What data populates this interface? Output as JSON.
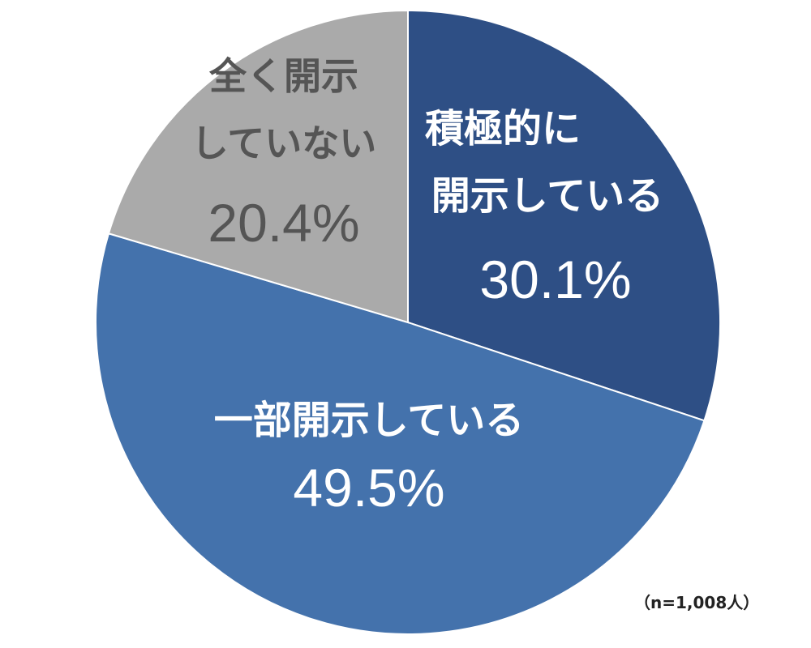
{
  "chart_data": {
    "type": "pie",
    "title": "",
    "start_angle_deg": 0,
    "direction": "clockwise",
    "slices": [
      {
        "label_lines": [
          "積極的に",
          "開示している"
        ],
        "value": 30.1,
        "value_text": "30.1%",
        "color": "#2e4f85",
        "text_color": "#ffffff"
      },
      {
        "label_lines": [
          "一部開示している"
        ],
        "value": 49.5,
        "value_text": "49.5%",
        "color": "#4472ac",
        "text_color": "#ffffff"
      },
      {
        "label_lines": [
          "全く開示",
          "していない"
        ],
        "value": 20.4,
        "value_text": "20.4%",
        "color": "#aaaaaa",
        "text_color": "#555555"
      }
    ],
    "note": "（n=1,008人）"
  }
}
